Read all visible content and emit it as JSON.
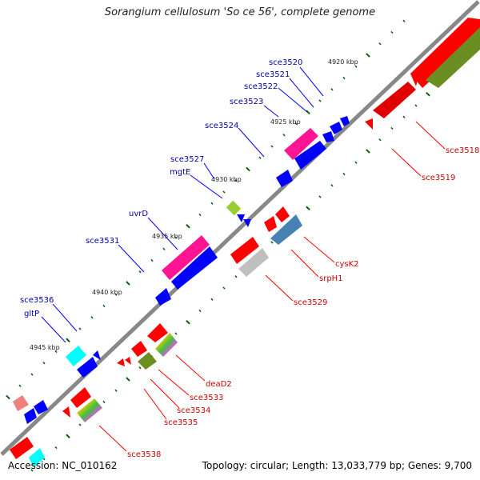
{
  "title": "Sorangium cellulosum 'So ce 56', complete genome",
  "footer": {
    "accession": "Accession: NC_010162",
    "topology": "Topology: circular; Length: 13,033,779 bp; Genes: 9,700"
  },
  "kbp_labels": [
    "4920 kbp",
    "4925 kbp",
    "4930 kbp",
    "4935 kbp",
    "4940 kbp",
    "4945 kbp"
  ],
  "gene_labels_top": [
    "sce3520",
    "sce3521",
    "sce3522",
    "sce3523",
    "sce3524",
    "sce3527",
    "mgtE",
    "uvrD",
    "sce3531",
    "sce3536",
    "gltP"
  ],
  "gene_labels_bottom": [
    "sce3518",
    "sce3519",
    "cysK2",
    "srpH1",
    "sce3529",
    "deaD2",
    "sce3533",
    "sce3534",
    "sce3535",
    "sce3538"
  ],
  "colors": {
    "forward": "#0000ff",
    "reverse": "#ff0000",
    "label_top": "#0000aa",
    "label_bottom": "#cc0000",
    "tick": "#006400"
  }
}
